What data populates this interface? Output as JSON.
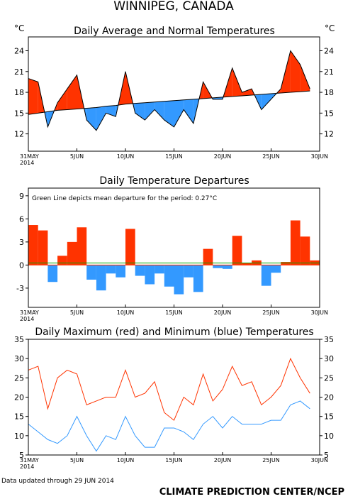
{
  "page_title": "WINNIPEG, CANADA",
  "footer_left": "Data updated through 29 JUN 2014",
  "footer_right": "CLIMATE PREDICTION CENTER/NCEP",
  "x_ticks": [
    "31MAY",
    "5JUN",
    "10JUN",
    "15JUN",
    "20JUN",
    "25JUN",
    "30JUN"
  ],
  "x_year": "2014",
  "colors": {
    "warm": "#ff3300",
    "cold": "#3399ff",
    "normal_line": "#000000",
    "mean_line": "#00aa00",
    "zero_line": "#ff3300"
  },
  "chart_data": [
    {
      "type": "area",
      "title": "Daily Average and Normal Temperatures",
      "unit_left": "°C",
      "unit_right": "°C",
      "yticks": [
        12,
        15,
        18,
        21,
        24
      ],
      "ylim": [
        9.5,
        26
      ],
      "x": [
        "31MAY",
        "1JUN",
        "2JUN",
        "3JUN",
        "4JUN",
        "5JUN",
        "6JUN",
        "7JUN",
        "8JUN",
        "9JUN",
        "10JUN",
        "11JUN",
        "12JUN",
        "13JUN",
        "14JUN",
        "15JUN",
        "16JUN",
        "17JUN",
        "18JUN",
        "19JUN",
        "20JUN",
        "21JUN",
        "22JUN",
        "23JUN",
        "24JUN",
        "25JUN",
        "26JUN",
        "27JUN",
        "28JUN",
        "29JUN"
      ],
      "series": [
        {
          "name": "average",
          "values": [
            20.0,
            19.5,
            13.0,
            16.5,
            18.5,
            20.5,
            14.0,
            12.5,
            15.0,
            14.5,
            21.0,
            15.0,
            14.0,
            15.5,
            14.0,
            13.0,
            15.5,
            13.5,
            19.5,
            17.0,
            17.0,
            21.5,
            18.0,
            18.5,
            15.5,
            17.0,
            18.5,
            24.0,
            22.0,
            18.5
          ]
        },
        {
          "name": "normal",
          "values": [
            14.8,
            15.0,
            15.2,
            15.4,
            15.5,
            15.6,
            15.7,
            15.8,
            16.0,
            16.1,
            16.3,
            16.4,
            16.5,
            16.6,
            16.7,
            16.8,
            16.9,
            17.0,
            17.1,
            17.2,
            17.3,
            17.4,
            17.5,
            17.6,
            17.7,
            17.8,
            17.9,
            18.0,
            18.1,
            18.2
          ]
        }
      ]
    },
    {
      "type": "bar",
      "title": "Daily Temperature Departures",
      "note": "Green Line depicts mean departure for the period:  0.27°C",
      "mean_departure": 0.27,
      "yticks": [
        -3,
        0,
        3,
        6,
        9
      ],
      "ylim": [
        -5.5,
        10
      ],
      "x": [
        "31MAY",
        "1JUN",
        "2JUN",
        "3JUN",
        "4JUN",
        "5JUN",
        "6JUN",
        "7JUN",
        "8JUN",
        "9JUN",
        "10JUN",
        "11JUN",
        "12JUN",
        "13JUN",
        "14JUN",
        "15JUN",
        "16JUN",
        "17JUN",
        "18JUN",
        "19JUN",
        "20JUN",
        "21JUN",
        "22JUN",
        "23JUN",
        "24JUN",
        "25JUN",
        "26JUN",
        "27JUN",
        "28JUN",
        "29JUN"
      ],
      "values": [
        5.2,
        4.5,
        -2.2,
        1.2,
        3.0,
        4.9,
        -1.9,
        -3.3,
        -1.1,
        -1.6,
        4.7,
        -1.4,
        -2.5,
        -1.1,
        -2.8,
        -3.8,
        -1.6,
        -3.5,
        2.1,
        -0.4,
        -0.5,
        3.8,
        0.3,
        0.6,
        -2.7,
        -1.0,
        0.4,
        5.8,
        3.7,
        0.6
      ]
    },
    {
      "type": "line",
      "title": "Daily Maximum (red) and Minimum (blue) Temperatures",
      "yticks": [
        5,
        10,
        15,
        20,
        25,
        30,
        35
      ],
      "ylim": [
        5,
        35
      ],
      "x": [
        "31MAY",
        "1JUN",
        "2JUN",
        "3JUN",
        "4JUN",
        "5JUN",
        "6JUN",
        "7JUN",
        "8JUN",
        "9JUN",
        "10JUN",
        "11JUN",
        "12JUN",
        "13JUN",
        "14JUN",
        "15JUN",
        "16JUN",
        "17JUN",
        "18JUN",
        "19JUN",
        "20JUN",
        "21JUN",
        "22JUN",
        "23JUN",
        "24JUN",
        "25JUN",
        "26JUN",
        "27JUN",
        "28JUN",
        "29JUN"
      ],
      "series": [
        {
          "name": "maximum",
          "color": "#ff3300",
          "values": [
            27,
            28,
            17,
            25,
            27,
            26,
            18,
            19,
            20,
            20,
            27,
            20,
            21,
            24,
            16,
            14,
            20,
            18,
            26,
            19,
            22,
            28,
            23,
            24,
            18,
            20,
            23,
            30,
            25,
            21
          ]
        },
        {
          "name": "minimum",
          "color": "#3399ff",
          "values": [
            13,
            11,
            9,
            8,
            10,
            15,
            10,
            6,
            10,
            9,
            15,
            10,
            7,
            7,
            12,
            12,
            11,
            9,
            13,
            15,
            12,
            15,
            13,
            13,
            13,
            14,
            14,
            18,
            19,
            17
          ]
        }
      ]
    }
  ]
}
